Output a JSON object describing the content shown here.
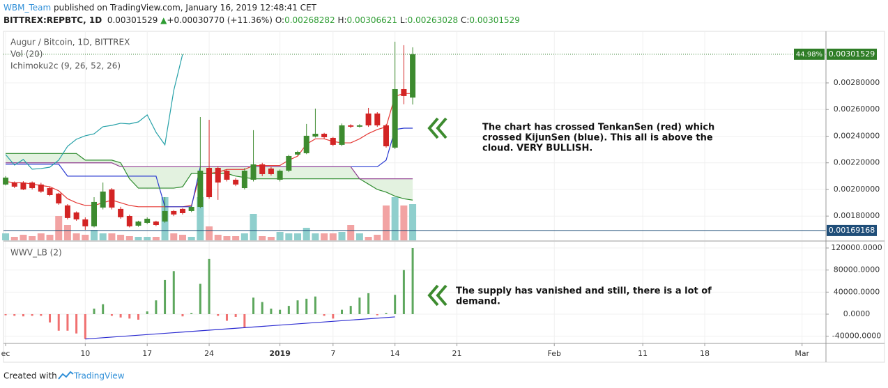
{
  "header": {
    "user": "WBM_Team",
    "published": "published on TradingView.com, January 16, 2019 12:48:41 CET",
    "symbol": "BITTREX:REPBTC, 1D",
    "last": "0.00301529",
    "arrow": "▲",
    "change": "+0.00030770 (+11.36%)",
    "o_label": "O:",
    "o": "0.00268282",
    "h_label": "H:",
    "h": "0.00306621",
    "l_label": "L:",
    "l": "0.00263028",
    "c_label": "C:",
    "c": "0.00301529"
  },
  "footer": {
    "created": "Created with",
    "brand": "TradingView"
  },
  "chart_data": [
    {
      "type": "candlestick",
      "title": "Augur / Bitcoin, 1D, BITTREX",
      "volume_label": "Vol (20)",
      "indicator_label": "Ichimoku2c (9, 26, 52, 26)",
      "up_color": "#3d8b2f",
      "down_color": "#d32424",
      "volume_up_color": "#8fcfcd",
      "volume_down_color": "#f2a3a3",
      "xlim": [
        -0.24,
        92.7
      ],
      "ylim": [
        0.001618,
        0.003187
      ],
      "yticks": [
        {
          "value": 0.0018,
          "label": "0.00180000"
        },
        {
          "value": 0.002,
          "label": "0.00200000"
        },
        {
          "value": 0.0022,
          "label": "0.00220000"
        },
        {
          "value": 0.0024,
          "label": "0.00240000"
        },
        {
          "value": 0.0026,
          "label": "0.00260000"
        },
        {
          "value": 0.0028,
          "label": "0.00280000"
        }
      ],
      "open": [
        0.002037,
        0.002052,
        0.002052,
        0.002052,
        0.002037,
        0.00201,
        0.001969,
        0.00188,
        0.001827,
        0.001775,
        0.001723,
        0.001864,
        0.002,
        0.001854,
        0.001801,
        0.001728,
        0.001749,
        0.001759,
        0.001759,
        0.001838,
        0.001854,
        0.001838,
        0.001869,
        0.002162,
        0.002162,
        0.002141,
        0.002073,
        0.00201,
        0.002073,
        0.002188,
        0.002157,
        0.002073,
        0.002141,
        0.002262,
        0.002272,
        0.002397,
        0.002418,
        0.002387,
        0.002335,
        0.002481,
        0.002471,
        0.00257,
        0.00257,
        0.002481,
        0.002314,
        0.002753,
        0.00269
      ],
      "high": [
        0.0021,
        0.00206,
        0.002062,
        0.00206,
        0.00205,
        0.00202,
        0.001975,
        0.00189,
        0.001835,
        0.00179,
        0.001942,
        0.002052,
        0.00201,
        0.00187,
        0.00181,
        0.001765,
        0.00179,
        0.001765,
        0.001942,
        0.001845,
        0.00186,
        0.001875,
        0.002544,
        0.002523,
        0.002175,
        0.00215,
        0.002085,
        0.00216,
        0.002445,
        0.0022,
        0.00217,
        0.00215,
        0.00226,
        0.00229,
        0.002492,
        0.002607,
        0.002425,
        0.002395,
        0.002495,
        0.00249,
        0.00249,
        0.002612,
        0.00258,
        0.00249,
        0.003109,
        0.003083,
        0.003067
      ],
      "low": [
        0.00203,
        0.00201,
        0.001995,
        0.002,
        0.001975,
        0.00195,
        0.001885,
        0.001775,
        0.001765,
        0.001697,
        0.001715,
        0.00185,
        0.00185,
        0.00178,
        0.001715,
        0.00172,
        0.00174,
        0.001725,
        0.00175,
        0.0018,
        0.001812,
        0.00183,
        0.00186,
        0.00193,
        0.001922,
        0.00206,
        0.002025,
        0.002,
        0.00206,
        0.0021,
        0.002105,
        0.00206,
        0.00213,
        0.002255,
        0.002265,
        0.00239,
        0.00238,
        0.002325,
        0.002325,
        0.00246,
        0.002465,
        0.00247,
        0.00247,
        0.002314,
        0.002303,
        0.00264,
        0.002638
      ],
      "close": [
        0.002089,
        0.002021,
        0.002,
        0.00201,
        0.001984,
        0.001958,
        0.001895,
        0.001786,
        0.001775,
        0.001723,
        0.001906,
        0.001984,
        0.001864,
        0.001791,
        0.001723,
        0.001759,
        0.00178,
        0.001733,
        0.001838,
        0.001812,
        0.001822,
        0.001869,
        0.002141,
        0.001942,
        0.002052,
        0.002073,
        0.002037,
        0.002141,
        0.002188,
        0.002115,
        0.002115,
        0.002141,
        0.002251,
        0.002282,
        0.002403,
        0.002418,
        0.002392,
        0.002335,
        0.002481,
        0.002471,
        0.002481,
        0.002481,
        0.002481,
        0.002324,
        0.002753,
        0.002701,
        0.003015
      ],
      "volume": [
        10,
        5,
        8,
        6,
        10,
        8,
        35,
        22,
        10,
        8,
        15,
        10,
        10,
        8,
        6,
        5,
        5,
        5,
        62,
        10,
        8,
        5,
        62,
        20,
        8,
        6,
        6,
        10,
        38,
        6,
        5,
        12,
        10,
        10,
        18,
        10,
        10,
        10,
        12,
        22,
        10,
        5,
        8,
        50,
        62,
        50,
        52
      ],
      "vlim": [
        0,
        100
      ],
      "lines": {
        "tenkan": {
          "color": "#e53935",
          "values": [
            0.00206,
            0.00205,
            0.00205,
            0.00204,
            0.00203,
            0.00202,
            0.00199,
            0.00193,
            0.0019,
            0.00188,
            0.00188,
            0.0019,
            0.00192,
            0.0019,
            0.00188,
            0.00187,
            0.00187,
            0.00187,
            0.00187,
            0.00187,
            0.00187,
            0.00188,
            0.00212,
            0.00212,
            0.00213,
            0.00215,
            0.00215,
            0.00215,
            0.00218,
            0.00218,
            0.00218,
            0.00218,
            0.00222,
            0.00225,
            0.00234,
            0.00238,
            0.00238,
            0.00236,
            0.00235,
            0.00235,
            0.00238,
            0.00242,
            0.00245,
            0.00247,
            0.0027,
            0.00272,
            0.00272
          ]
        },
        "kijun": {
          "color": "#2b3bd1",
          "values": [
            0.00219,
            0.00219,
            0.00219,
            0.00219,
            0.00219,
            0.00219,
            0.00219,
            0.0021,
            0.0021,
            0.0021,
            0.0021,
            0.0021,
            0.0021,
            0.0021,
            0.0021,
            0.0021,
            0.0021,
            0.0021,
            0.00187,
            0.00187,
            0.00187,
            0.00187,
            0.00217,
            0.00217,
            0.00217,
            0.00217,
            0.00217,
            0.00217,
            0.00217,
            0.00217,
            0.00217,
            0.00217,
            0.00217,
            0.00217,
            0.00217,
            0.00217,
            0.00217,
            0.00217,
            0.00217,
            0.00217,
            0.00217,
            0.00217,
            0.00217,
            0.00222,
            0.00245,
            0.00246,
            0.00246
          ]
        },
        "span_a": {
          "color": "#2e8b2e",
          "values": [
            0.00227,
            0.00227,
            0.00227,
            0.00227,
            0.00227,
            0.00227,
            0.00227,
            0.00227,
            0.00227,
            0.00222,
            0.00222,
            0.00222,
            0.00222,
            0.0022,
            0.00208,
            0.00201,
            0.00201,
            0.00201,
            0.00201,
            0.00201,
            0.00202,
            0.00212,
            0.00212,
            0.00212,
            0.00212,
            0.00212,
            0.0021,
            0.00209,
            0.00208,
            0.00208,
            0.00208,
            0.00208,
            0.00208,
            0.00208,
            0.00208,
            0.00208,
            0.00208,
            0.00208,
            0.00208,
            0.00208,
            0.00208,
            0.00204,
            0.002,
            0.00198,
            0.00195,
            0.00193,
            0.00192
          ]
        },
        "span_b": {
          "color": "#8e3a8e",
          "values": [
            0.0022,
            0.0022,
            0.0022,
            0.0022,
            0.0022,
            0.0022,
            0.0022,
            0.0022,
            0.0022,
            0.0022,
            0.0022,
            0.0022,
            0.0022,
            0.00217,
            0.00217,
            0.00217,
            0.00217,
            0.00217,
            0.00217,
            0.00217,
            0.00217,
            0.00217,
            0.00217,
            0.00217,
            0.00217,
            0.00217,
            0.00217,
            0.00217,
            0.00217,
            0.00217,
            0.00217,
            0.00217,
            0.00217,
            0.00217,
            0.00217,
            0.00217,
            0.00217,
            0.00217,
            0.00217,
            0.00217,
            0.00208,
            0.00208,
            0.00208,
            0.00208,
            0.00208,
            0.00208,
            0.00208
          ]
        },
        "chikou": {
          "color": "#26a1a8",
          "values": [
            0.002262,
            0.002183,
            0.002225,
            0.002152,
            0.002157,
            0.002167,
            0.00222,
            0.002324,
            0.002377,
            0.002403,
            0.002418,
            0.002471,
            0.002481,
            0.002497,
            0.002492,
            0.002507,
            0.00256,
            0.002429,
            0.002335,
            0.002743,
            0.003015,
            null,
            null,
            null,
            null,
            null,
            null,
            null,
            null,
            null,
            null,
            null,
            null,
            null,
            null,
            null,
            null,
            null,
            null,
            null,
            null,
            null,
            null,
            null,
            null,
            null,
            null
          ]
        }
      },
      "cloud_color": "#e3f2e0",
      "last_price": {
        "value": 0.00301529,
        "label": "0.00301529",
        "color": "#2f7d27"
      },
      "last_change": {
        "value": 44.98,
        "label": "44.98%"
      },
      "price_line": {
        "value": 0.00169168,
        "label": "0.00169168",
        "color": "#1f4e79"
      },
      "annotation": [
        "The chart has crossed TenkanSen (red) which",
        "crossed KijunSen (blue). This all is above the",
        "cloud. VERY BULLISH."
      ]
    },
    {
      "type": "bar",
      "title": "WWV_LB (2)",
      "up_color": "#5da75d",
      "down_color": "#f07070",
      "xlim": [
        -0.24,
        92.7
      ],
      "ylim": [
        -53053,
        131368
      ],
      "yticks": [
        {
          "value": -40000,
          "label": "-40000.0000"
        },
        {
          "value": 0,
          "label": "0.0000"
        },
        {
          "value": 40000,
          "label": "40000.0000"
        },
        {
          "value": 80000,
          "label": "80000.0000"
        },
        {
          "value": 120000,
          "label": "120000.0000"
        }
      ],
      "xticks": [
        {
          "value": 0,
          "label": "ec"
        },
        {
          "value": 9,
          "label": "10"
        },
        {
          "value": 16,
          "label": "17"
        },
        {
          "value": 23,
          "label": "24"
        },
        {
          "value": 31,
          "label": "2019"
        },
        {
          "value": 37,
          "label": "7"
        },
        {
          "value": 44,
          "label": "14"
        },
        {
          "value": 51,
          "label": "21"
        },
        {
          "value": 62,
          "label": "Feb"
        },
        {
          "value": 72,
          "label": "11"
        },
        {
          "value": 79,
          "label": "18"
        },
        {
          "value": 90,
          "label": "Mar"
        }
      ],
      "values": [
        -2000,
        -3000,
        -4000,
        -3000,
        -3000,
        -15000,
        -30000,
        -30000,
        -35000,
        -45000,
        10000,
        18000,
        -3000,
        -6000,
        -8000,
        -10000,
        5000,
        25000,
        62000,
        78000,
        -4000,
        2000,
        55000,
        100000,
        -3000,
        -12000,
        -5000,
        -25000,
        30000,
        22000,
        10000,
        8000,
        15000,
        25000,
        28000,
        32000,
        -3000,
        -8000,
        8000,
        15000,
        30000,
        38000,
        -2000,
        2000,
        35000,
        80000,
        120000
      ],
      "trendline": {
        "x": [
          9,
          44
        ],
        "values": [
          -45000,
          -5000
        ],
        "color": "#2b2bd1"
      },
      "annotation": [
        "The supply has vanished and still, there is a lot of",
        "demand."
      ]
    }
  ]
}
